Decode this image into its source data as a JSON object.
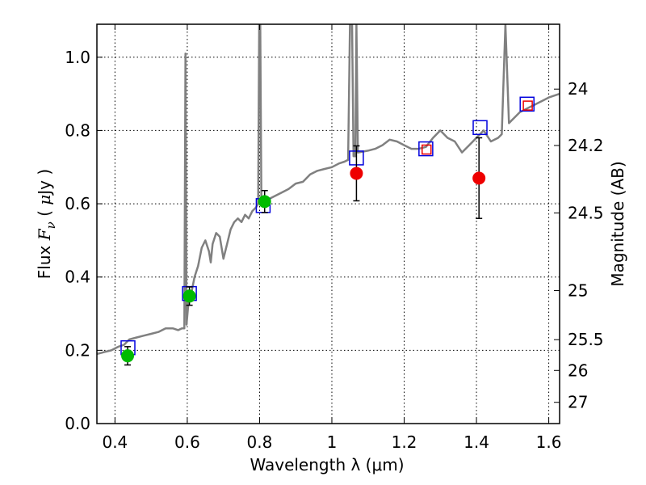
{
  "chart_data": {
    "type": "scatter",
    "xlabel": "Wavelength  λ (μm)",
    "ylabel": {
      "prefix": "Flux  ",
      "var": "F",
      "sub": "ν",
      "mid": "  ( ",
      "mu": "μ",
      "unit": "Jy )"
    },
    "y2label": "Magnitude (AB)",
    "xlim": [
      0.35,
      1.63
    ],
    "ylim": [
      0.0,
      1.09
    ],
    "grid": true,
    "x_ticks": [
      {
        "value": 0.4,
        "label": "0.4"
      },
      {
        "value": 0.6,
        "label": "0.6"
      },
      {
        "value": 0.8,
        "label": "0.8"
      },
      {
        "value": 1.0,
        "label": "1"
      },
      {
        "value": 1.2,
        "label": "1.2"
      },
      {
        "value": 1.4,
        "label": "1.4"
      },
      {
        "value": 1.6,
        "label": "1.6"
      }
    ],
    "y_ticks": [
      {
        "value": 0.0,
        "label": "0.0"
      },
      {
        "value": 0.2,
        "label": "0.2"
      },
      {
        "value": 0.4,
        "label": "0.4"
      },
      {
        "value": 0.6,
        "label": "0.6"
      },
      {
        "value": 0.8,
        "label": "0.8"
      },
      {
        "value": 1.0,
        "label": "1.0"
      }
    ],
    "y2_ticks": [
      {
        "flux": 0.913,
        "label": "24"
      },
      {
        "flux": 0.759,
        "label": "24.2"
      },
      {
        "flux": 0.575,
        "label": "24.5"
      },
      {
        "flux": 0.363,
        "label": "25"
      },
      {
        "flux": 0.229,
        "label": "25.5"
      },
      {
        "flux": 0.145,
        "label": "26"
      },
      {
        "flux": 0.058,
        "label": "27"
      }
    ],
    "spectrum": {
      "color": "#808080",
      "points": [
        [
          0.35,
          0.19
        ],
        [
          0.37,
          0.195
        ],
        [
          0.39,
          0.2
        ],
        [
          0.41,
          0.21
        ],
        [
          0.425,
          0.215
        ],
        [
          0.44,
          0.23
        ],
        [
          0.46,
          0.235
        ],
        [
          0.48,
          0.24
        ],
        [
          0.5,
          0.245
        ],
        [
          0.52,
          0.25
        ],
        [
          0.54,
          0.26
        ],
        [
          0.56,
          0.26
        ],
        [
          0.575,
          0.255
        ],
        [
          0.585,
          0.26
        ],
        [
          0.592,
          0.26
        ],
        [
          0.595,
          1.01
        ],
        [
          0.598,
          0.27
        ],
        [
          0.605,
          0.35
        ],
        [
          0.612,
          0.36
        ],
        [
          0.62,
          0.4
        ],
        [
          0.63,
          0.43
        ],
        [
          0.64,
          0.48
        ],
        [
          0.65,
          0.5
        ],
        [
          0.66,
          0.47
        ],
        [
          0.665,
          0.44
        ],
        [
          0.67,
          0.49
        ],
        [
          0.68,
          0.52
        ],
        [
          0.69,
          0.51
        ],
        [
          0.7,
          0.45
        ],
        [
          0.71,
          0.49
        ],
        [
          0.72,
          0.53
        ],
        [
          0.73,
          0.55
        ],
        [
          0.74,
          0.56
        ],
        [
          0.75,
          0.55
        ],
        [
          0.76,
          0.57
        ],
        [
          0.77,
          0.56
        ],
        [
          0.78,
          0.58
        ],
        [
          0.79,
          0.59
        ],
        [
          0.796,
          0.6
        ],
        [
          0.799,
          1.09
        ],
        [
          0.802,
          1.09
        ],
        [
          0.805,
          0.6
        ],
        [
          0.82,
          0.61
        ],
        [
          0.84,
          0.62
        ],
        [
          0.86,
          0.63
        ],
        [
          0.88,
          0.64
        ],
        [
          0.9,
          0.655
        ],
        [
          0.92,
          0.66
        ],
        [
          0.94,
          0.68
        ],
        [
          0.96,
          0.69
        ],
        [
          0.98,
          0.695
        ],
        [
          1.0,
          0.7
        ],
        [
          1.02,
          0.71
        ],
        [
          1.035,
          0.715
        ],
        [
          1.045,
          0.72
        ],
        [
          1.05,
          1.09
        ],
        [
          1.056,
          1.09
        ],
        [
          1.06,
          0.73
        ],
        [
          1.065,
          0.73
        ],
        [
          1.068,
          1.09
        ],
        [
          1.072,
          0.74
        ],
        [
          1.1,
          0.745
        ],
        [
          1.12,
          0.75
        ],
        [
          1.14,
          0.76
        ],
        [
          1.16,
          0.775
        ],
        [
          1.18,
          0.77
        ],
        [
          1.2,
          0.76
        ],
        [
          1.22,
          0.75
        ],
        [
          1.24,
          0.75
        ],
        [
          1.26,
          0.755
        ],
        [
          1.28,
          0.78
        ],
        [
          1.3,
          0.8
        ],
        [
          1.32,
          0.78
        ],
        [
          1.34,
          0.77
        ],
        [
          1.36,
          0.74
        ],
        [
          1.38,
          0.76
        ],
        [
          1.4,
          0.78
        ],
        [
          1.42,
          0.8
        ],
        [
          1.44,
          0.77
        ],
        [
          1.46,
          0.78
        ],
        [
          1.47,
          0.79
        ],
        [
          1.48,
          1.09
        ],
        [
          1.49,
          0.82
        ],
        [
          1.5,
          0.83
        ],
        [
          1.52,
          0.85
        ],
        [
          1.54,
          0.86
        ],
        [
          1.56,
          0.87
        ],
        [
          1.58,
          0.88
        ],
        [
          1.6,
          0.89
        ],
        [
          1.63,
          0.9
        ]
      ]
    },
    "photometry_green": {
      "color": "#00bb00",
      "points": [
        {
          "x": 0.435,
          "y": 0.185,
          "err": 0.025
        },
        {
          "x": 0.606,
          "y": 0.348,
          "err": 0.025
        },
        {
          "x": 0.814,
          "y": 0.606,
          "err": 0.03
        }
      ]
    },
    "photometry_red": {
      "color": "#ee0000",
      "points": [
        {
          "x": 1.068,
          "y": 0.683,
          "err_low": 0.075,
          "err_high": 0.075
        },
        {
          "x": 1.407,
          "y": 0.67,
          "err_low": 0.11,
          "err_high": 0.11
        }
      ]
    },
    "model_blue_squares": {
      "color": "#0000dd",
      "points": [
        {
          "x": 0.436,
          "y": 0.207
        },
        {
          "x": 0.606,
          "y": 0.355
        },
        {
          "x": 0.81,
          "y": 0.595
        },
        {
          "x": 1.068,
          "y": 0.725
        },
        {
          "x": 1.26,
          "y": 0.75
        },
        {
          "x": 1.41,
          "y": 0.808
        },
        {
          "x": 1.54,
          "y": 0.872
        }
      ]
    },
    "model_red_squares": {
      "color": "#ee0000",
      "points": [
        {
          "x": 1.262,
          "y": 0.748
        },
        {
          "x": 1.542,
          "y": 0.868
        }
      ]
    }
  }
}
